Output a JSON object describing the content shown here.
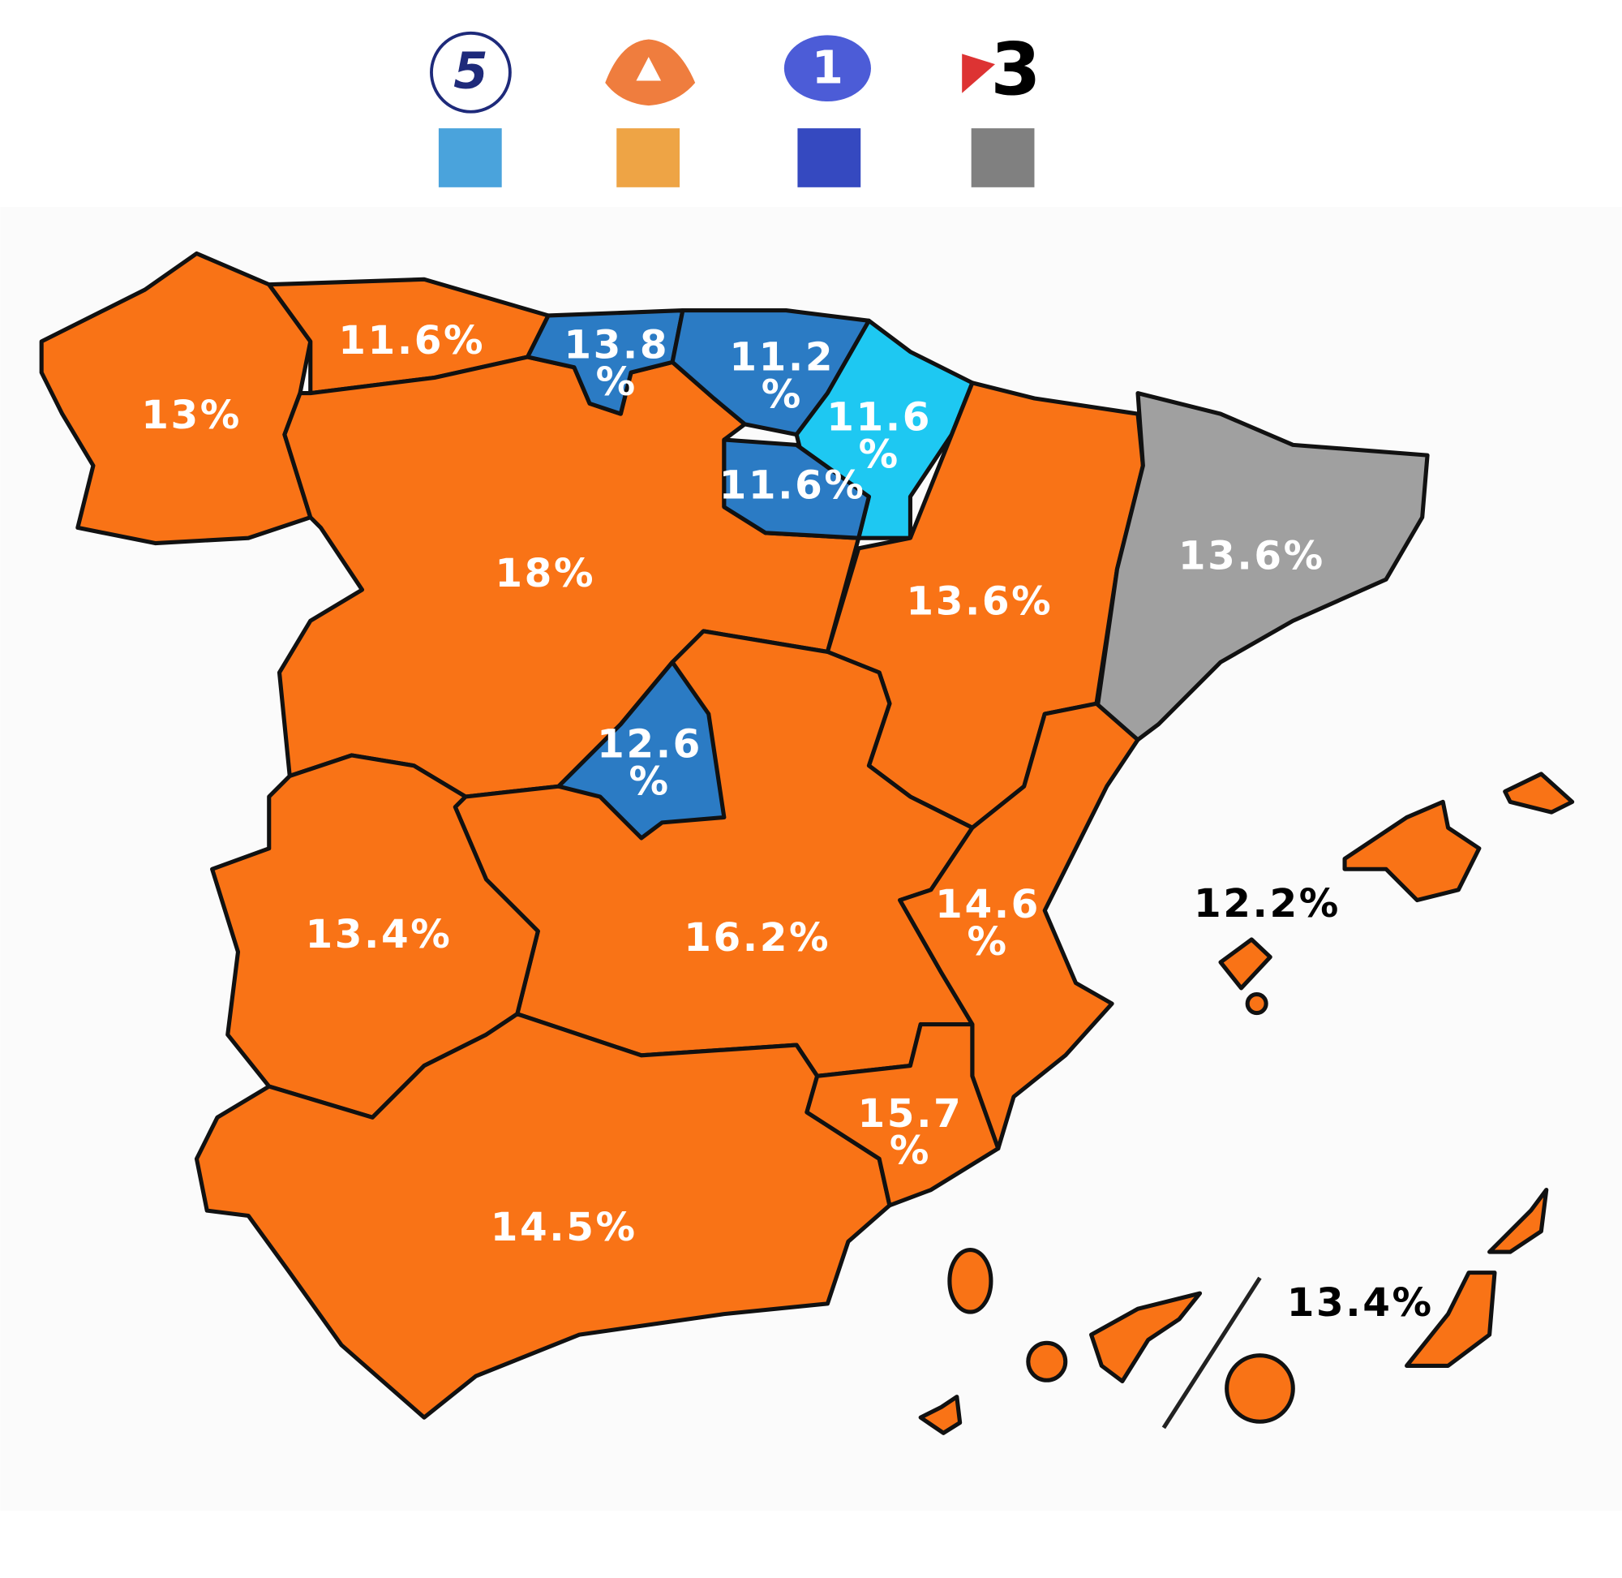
{
  "legend": [
    {
      "logo_text": "5",
      "color": "#4aa3dc"
    },
    {
      "color": "#eea445"
    },
    {
      "logo_text": "1",
      "color": "#3549c0"
    },
    {
      "logo_text": "3",
      "color": "#808080"
    }
  ],
  "regions": [
    {
      "lines": [
        "13%"
      ],
      "color": "#f97316",
      "text_color": "#ffffff"
    },
    {
      "lines": [
        "11.6%"
      ],
      "color": "#f97316",
      "text_color": "#ffffff"
    },
    {
      "lines": [
        "13.8",
        "%"
      ],
      "color": "#2b7bc4",
      "text_color": "#ffffff"
    },
    {
      "lines": [
        "11.2",
        "%"
      ],
      "color": "#2b7bc4",
      "text_color": "#ffffff"
    },
    {
      "lines": [
        "11.6",
        "%"
      ],
      "color": "#1ec8f2",
      "text_color": "#ffffff"
    },
    {
      "lines": [
        "11.6%"
      ],
      "color": "#2b7bc4",
      "text_color": "#ffffff"
    },
    {
      "lines": [
        "18%"
      ],
      "color": "#f97316",
      "text_color": "#ffffff"
    },
    {
      "lines": [
        "13.6%"
      ],
      "color": "#f97316",
      "text_color": "#ffffff"
    },
    {
      "lines": [
        "13.6%"
      ],
      "color": "#a0a0a0",
      "text_color": "#ffffff"
    },
    {
      "lines": [
        "12.6",
        "%"
      ],
      "color": "#2b7bc4",
      "text_color": "#ffffff"
    },
    {
      "lines": [
        "13.4%"
      ],
      "color": "#f97316",
      "text_color": "#ffffff"
    },
    {
      "lines": [
        "16.2%"
      ],
      "color": "#f97316",
      "text_color": "#ffffff"
    },
    {
      "lines": [
        "14.6",
        "%"
      ],
      "color": "#f97316",
      "text_color": "#ffffff"
    },
    {
      "lines": [
        "15.7",
        "%"
      ],
      "color": "#f97316",
      "text_color": "#ffffff"
    },
    {
      "lines": [
        "14.5%"
      ],
      "color": "#f97316",
      "text_color": "#ffffff"
    },
    {
      "lines": [
        "12.2%"
      ],
      "color": "#f97316",
      "text_color": "#000000"
    },
    {
      "lines": [
        "13.4%"
      ],
      "color": "#f97316",
      "text_color": "#000000"
    }
  ]
}
